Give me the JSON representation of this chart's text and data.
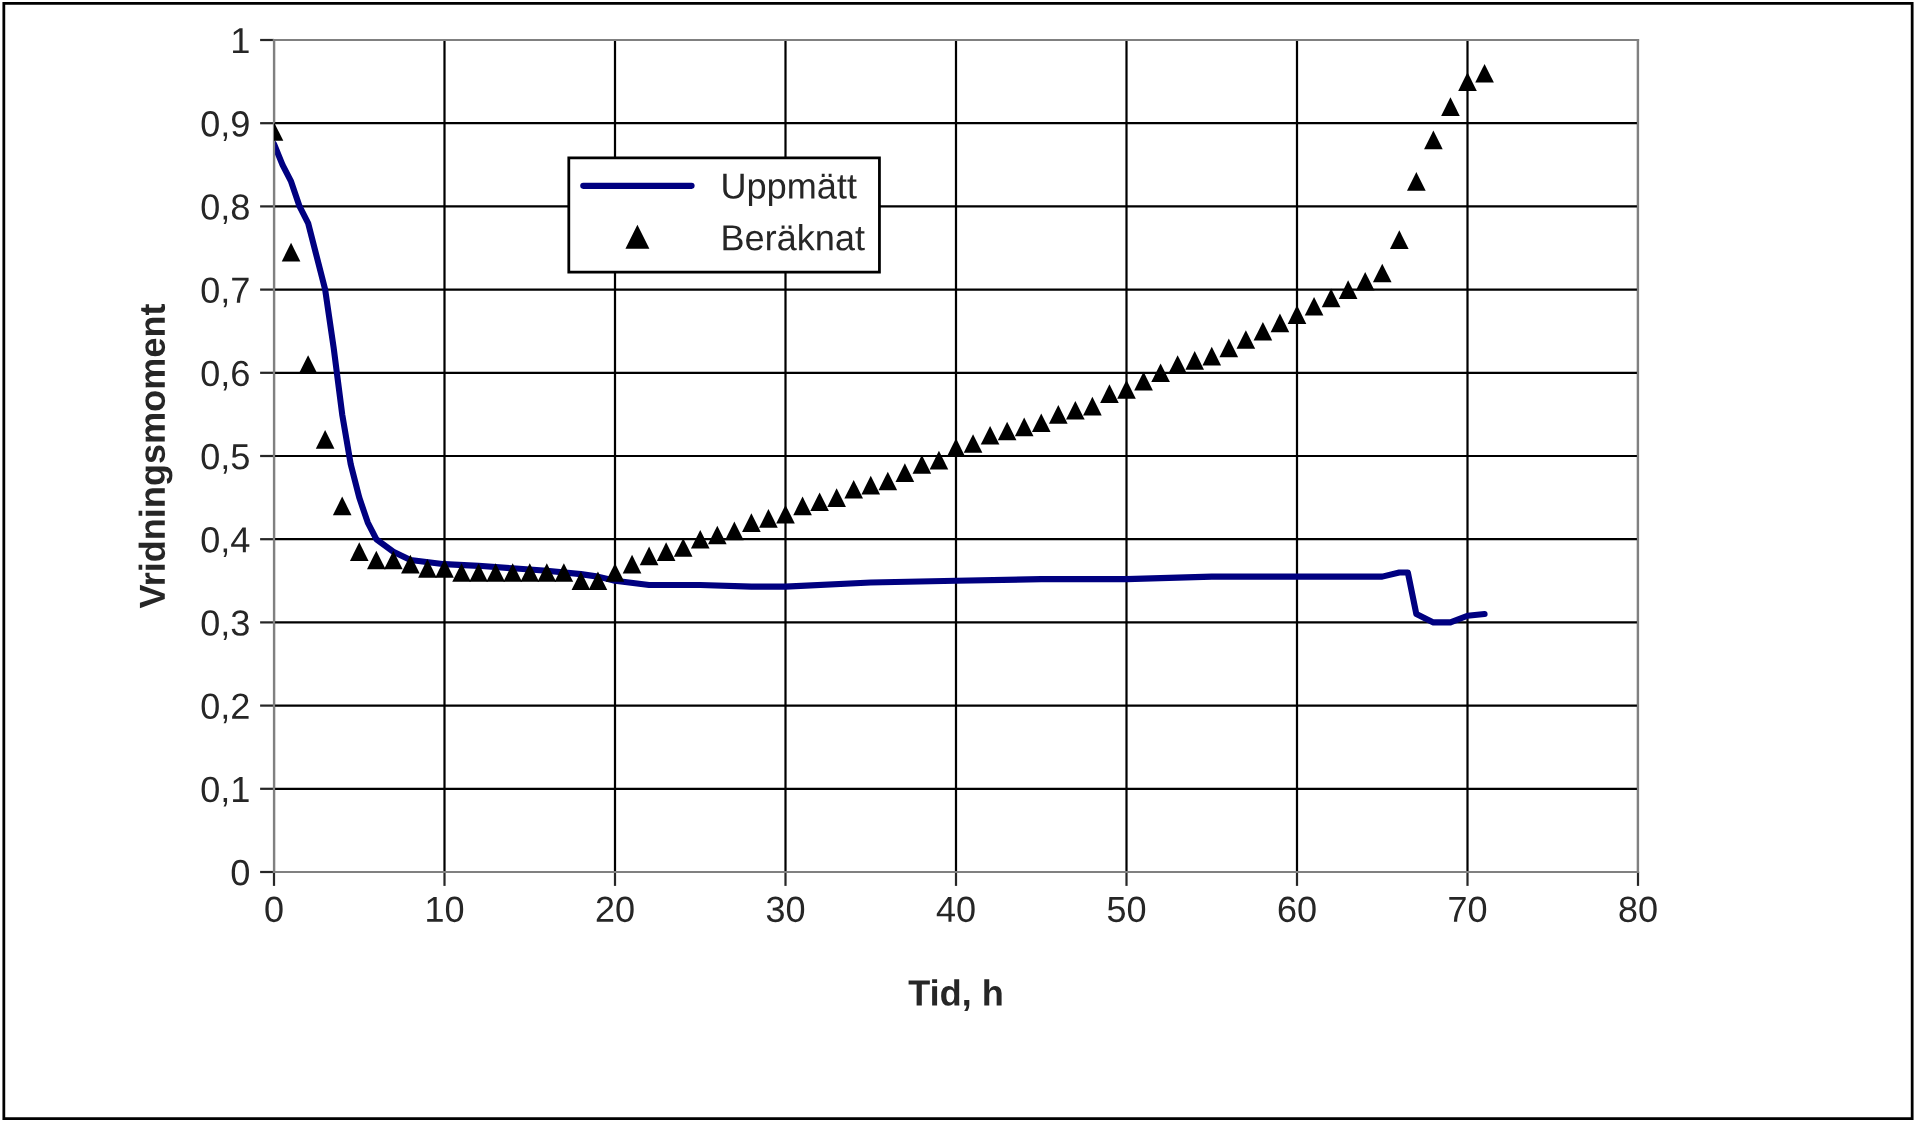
{
  "chart_data": {
    "type": "line",
    "xlabel": "Tid, h",
    "ylabel": "Vridningsmoment",
    "xlim": [
      0,
      80
    ],
    "xticks": [
      0,
      10,
      20,
      30,
      40,
      50,
      60,
      70,
      80
    ],
    "ylim": [
      0,
      1
    ],
    "yticks": [
      0,
      {
        "value": 0.1,
        "label": "0,1"
      },
      {
        "value": 0.2,
        "label": "0,2"
      },
      {
        "value": 0.3,
        "label": "0,3"
      },
      {
        "value": 0.4,
        "label": "0,4"
      },
      {
        "value": 0.5,
        "label": "0,5"
      },
      {
        "value": 0.6,
        "label": "0,6"
      },
      {
        "value": 0.7,
        "label": "0,7"
      },
      {
        "value": 0.8,
        "label": "0,8"
      },
      {
        "value": 0.9,
        "label": "0,9"
      },
      1
    ],
    "grid": true,
    "legend": "top",
    "series": [
      {
        "name": "Uppmätt",
        "color": "#000080",
        "marker": "none",
        "line_style": "solid",
        "x": [
          0,
          0.5,
          1,
          1.5,
          2,
          2.5,
          3,
          3.5,
          4,
          4.5,
          5,
          5.5,
          6,
          7,
          8,
          10,
          12,
          14,
          16,
          18,
          19,
          20,
          22,
          25,
          28,
          30,
          35,
          40,
          45,
          50,
          55,
          60,
          65,
          66,
          66.5,
          67,
          68,
          69,
          70,
          71
        ],
        "values": [
          0.875,
          0.85,
          0.83,
          0.8,
          0.78,
          0.74,
          0.7,
          0.63,
          0.55,
          0.49,
          0.45,
          0.42,
          0.4,
          0.385,
          0.375,
          0.37,
          0.368,
          0.365,
          0.362,
          0.358,
          0.355,
          0.35,
          0.345,
          0.345,
          0.343,
          0.343,
          0.348,
          0.35,
          0.352,
          0.352,
          0.355,
          0.355,
          0.355,
          0.36,
          0.36,
          0.31,
          0.3,
          0.3,
          0.308,
          0.31
        ]
      },
      {
        "name": "Beräknat",
        "type": "scatter",
        "color": "#000000",
        "marker": "triangle",
        "x": [
          0,
          1,
          2,
          3,
          4,
          5,
          6,
          7,
          8,
          9,
          10,
          11,
          12,
          13,
          14,
          15,
          16,
          17,
          18,
          19,
          20,
          21,
          22,
          23,
          24,
          25,
          26,
          27,
          28,
          29,
          30,
          31,
          32,
          33,
          34,
          35,
          36,
          37,
          38,
          39,
          40,
          41,
          42,
          43,
          44,
          45,
          46,
          47,
          48,
          49,
          50,
          51,
          52,
          53,
          54,
          55,
          56,
          57,
          58,
          59,
          60,
          61,
          62,
          63,
          64,
          65,
          66,
          67,
          68,
          69,
          70,
          71
        ],
        "values": [
          0.89,
          0.745,
          0.61,
          0.52,
          0.44,
          0.385,
          0.375,
          0.375,
          0.37,
          0.365,
          0.365,
          0.36,
          0.36,
          0.36,
          0.36,
          0.36,
          0.36,
          0.36,
          0.35,
          0.35,
          0.36,
          0.37,
          0.38,
          0.385,
          0.39,
          0.4,
          0.405,
          0.41,
          0.42,
          0.425,
          0.43,
          0.44,
          0.445,
          0.45,
          0.46,
          0.465,
          0.47,
          0.48,
          0.49,
          0.495,
          0.51,
          0.515,
          0.525,
          0.53,
          0.535,
          0.54,
          0.55,
          0.555,
          0.56,
          0.575,
          0.58,
          0.59,
          0.6,
          0.61,
          0.615,
          0.62,
          0.63,
          0.64,
          0.65,
          0.66,
          0.67,
          0.68,
          0.69,
          0.7,
          0.71,
          0.72,
          0.76,
          0.83,
          0.88,
          0.92,
          0.95,
          0.96
        ]
      }
    ]
  }
}
